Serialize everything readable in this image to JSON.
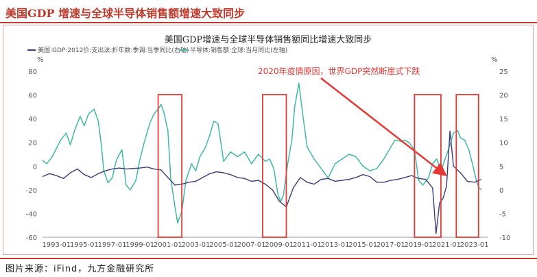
{
  "header": {
    "title": "美国GDP 增速与全球半导体销售额增速大致同步"
  },
  "footer": {
    "source": "图片来源：iFind，九方金融研究所"
  },
  "chart_data": {
    "type": "line",
    "title": "美国GDP增速与全球半导体销售额同比增速大致同步",
    "left_unit": "%",
    "right_unit": "%",
    "left_ylim": [
      -60,
      80
    ],
    "right_ylim": [
      -10,
      25
    ],
    "left_ticks": [
      "80",
      "60",
      "40",
      "20",
      "0",
      "-20",
      "-40",
      "-60"
    ],
    "right_ticks": [
      "25",
      "20",
      "15",
      "10",
      "5",
      "0",
      "-5",
      "-10"
    ],
    "x_ticks": [
      "1993-01",
      "1995-01",
      "1997-01",
      "1999-01",
      "2001-01",
      "2003-01",
      "2005-01",
      "2007-01",
      "2009-01",
      "2011-01",
      "2013-01",
      "2015-01",
      "2017-01",
      "2019-01",
      "2021-01",
      "2023-01"
    ],
    "x_range": [
      1992.0,
      2024.0
    ],
    "legend": [
      "美国:GDP:2012价:支出法:折年数:季调:当季同比(右轴)",
      "半导体:销售额:全球:当月同比(左轴)"
    ],
    "annotation": "2020年疫情原因，世界GDP突然断崖式下跌",
    "colors": {
      "gdp": "#3b3b7a",
      "semi": "#3fb8a8",
      "box": "#e53935",
      "arrow": "#e53935"
    },
    "series": [
      {
        "name": "美国:GDP:2012价:支出法:折年数:季调:当季同比(右轴)",
        "axis": "right",
        "x": [
          1992.0,
          1992.5,
          1993.0,
          1993.5,
          1994.0,
          1994.5,
          1995.0,
          1995.5,
          1996.0,
          1996.5,
          1997.0,
          1997.5,
          1998.0,
          1998.5,
          1999.0,
          1999.5,
          2000.0,
          2000.5,
          2001.0,
          2001.5,
          2002.0,
          2002.5,
          2003.0,
          2003.5,
          2004.0,
          2004.5,
          2005.0,
          2005.5,
          2006.0,
          2006.5,
          2007.0,
          2007.5,
          2008.0,
          2008.5,
          2009.0,
          2009.5,
          2010.0,
          2010.5,
          2011.0,
          2011.5,
          2012.0,
          2012.5,
          2013.0,
          2013.5,
          2014.0,
          2014.5,
          2015.0,
          2015.5,
          2016.0,
          2016.5,
          2017.0,
          2017.5,
          2018.0,
          2018.5,
          2019.0,
          2019.5,
          2020.0,
          2020.25,
          2020.5,
          2020.75,
          2021.0,
          2021.25,
          2021.5,
          2022.0,
          2022.5,
          2023.0,
          2023.5
        ],
        "values": [
          2.8,
          3.4,
          3.0,
          2.4,
          3.6,
          4.4,
          3.2,
          2.6,
          3.4,
          4.0,
          4.4,
          4.6,
          4.4,
          4.5,
          4.6,
          4.8,
          4.4,
          4.2,
          2.6,
          1.0,
          1.2,
          1.6,
          1.8,
          2.6,
          3.4,
          3.8,
          3.6,
          3.2,
          2.6,
          2.4,
          1.8,
          2.0,
          1.2,
          0.0,
          -2.4,
          -3.6,
          0.4,
          2.6,
          1.6,
          1.2,
          2.2,
          2.4,
          1.8,
          2.0,
          2.2,
          2.6,
          3.2,
          2.8,
          1.6,
          1.6,
          2.0,
          2.2,
          2.6,
          3.0,
          2.4,
          2.2,
          0.4,
          -9.2,
          -2.8,
          -1.8,
          0.8,
          12.4,
          5.0,
          3.6,
          1.8,
          1.6,
          2.2
        ]
      },
      {
        "name": "半导体:销售额:全球:当月同比(左轴)",
        "axis": "left",
        "x": [
          1992.0,
          1992.3,
          1992.7,
          1993.0,
          1993.3,
          1993.7,
          1994.0,
          1994.3,
          1994.7,
          1995.0,
          1995.3,
          1995.7,
          1996.0,
          1996.2,
          1996.4,
          1996.7,
          1997.0,
          1997.3,
          1997.7,
          1998.0,
          1998.3,
          1998.7,
          1999.0,
          1999.3,
          1999.7,
          2000.0,
          2000.3,
          2000.5,
          2000.7,
          2001.0,
          2001.2,
          2001.5,
          2001.7,
          2002.0,
          2002.3,
          2002.7,
          2003.0,
          2003.3,
          2003.7,
          2004.0,
          2004.3,
          2004.6,
          2005.0,
          2005.5,
          2006.0,
          2006.5,
          2007.0,
          2007.5,
          2008.0,
          2008.3,
          2008.6,
          2008.9,
          2009.1,
          2009.3,
          2009.6,
          2009.9,
          2010.1,
          2010.4,
          2010.7,
          2011.0,
          2011.5,
          2012.0,
          2012.5,
          2013.0,
          2013.5,
          2014.0,
          2014.5,
          2015.0,
          2015.5,
          2016.0,
          2016.5,
          2017.0,
          2017.3,
          2017.7,
          2018.0,
          2018.3,
          2018.7,
          2019.0,
          2019.3,
          2019.7,
          2020.0,
          2020.3,
          2020.6,
          2020.9,
          2021.2,
          2021.5,
          2021.8,
          2022.0,
          2022.3,
          2022.6,
          2022.9,
          2023.1,
          2023.3,
          2023.5
        ],
        "values": [
          5,
          2,
          8,
          15,
          22,
          28,
          18,
          30,
          42,
          34,
          44,
          48,
          38,
          20,
          -4,
          -14,
          -10,
          5,
          14,
          -16,
          -20,
          -12,
          6,
          20,
          36,
          44,
          48,
          52,
          46,
          30,
          -10,
          -34,
          -48,
          -38,
          -12,
          2,
          -4,
          8,
          16,
          26,
          38,
          36,
          4,
          12,
          8,
          12,
          2,
          10,
          4,
          6,
          -2,
          -24,
          -30,
          -24,
          2,
          22,
          50,
          70,
          42,
          16,
          6,
          -2,
          -10,
          2,
          6,
          10,
          8,
          0,
          -4,
          -2,
          6,
          16,
          22,
          21,
          22,
          20,
          14,
          -12,
          -16,
          -10,
          2,
          6,
          -4,
          6,
          16,
          28,
          30,
          24,
          22,
          14,
          0,
          -10,
          -18,
          -20
        ]
      }
    ],
    "boxes": [
      [
        2000.3,
        2002.0
      ],
      [
        2007.8,
        2009.5
      ],
      [
        2018.7,
        2020.6
      ],
      [
        2021.7,
        2023.3
      ]
    ]
  }
}
